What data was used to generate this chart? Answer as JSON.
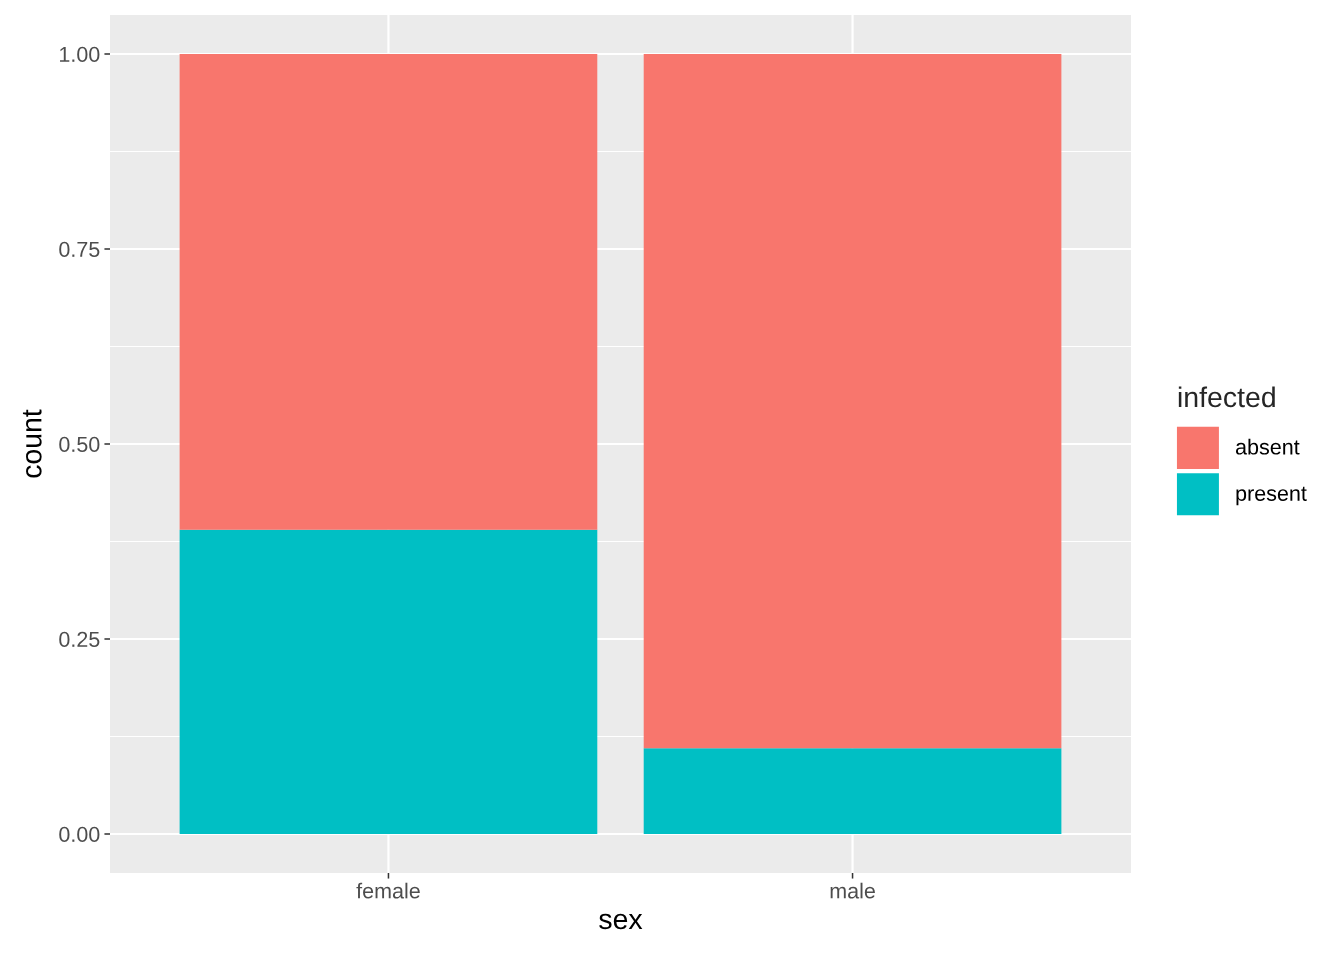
{
  "chart_data": {
    "type": "bar",
    "xlabel": "sex",
    "ylabel": "count",
    "legend_title": "infected",
    "categories": [
      "female",
      "male"
    ],
    "series": [
      {
        "name": "present",
        "color": "#00bfc4",
        "values": [
          0.39,
          0.11
        ]
      },
      {
        "name": "absent",
        "color": "#f8766d",
        "values": [
          0.61,
          0.89
        ]
      }
    ],
    "stacked": true,
    "ylim": [
      -0.05,
      1.05
    ],
    "yticks": [
      {
        "value": 0,
        "label": "0.00"
      },
      {
        "value": 0.25,
        "label": "0.25"
      },
      {
        "value": 0.5,
        "label": "0.50"
      },
      {
        "value": 0.75,
        "label": "0.75"
      },
      {
        "value": 1,
        "label": "1.00"
      }
    ],
    "grid": true,
    "legend": "right"
  }
}
